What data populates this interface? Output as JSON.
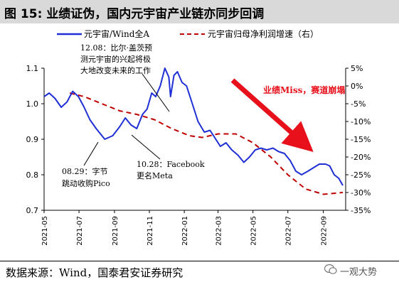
{
  "header": {
    "title": "图 15: 业绩证伪，国内元宇宙产业链亦同步回调"
  },
  "source": {
    "text": "数据来源：Wind，国泰君安证券研究",
    "watermark": "一观大势"
  },
  "colors": {
    "title_bg": "#d9d9d9",
    "series_index": "#1f2fd6",
    "series_growth": "#c00000",
    "arrow": "#e8101b"
  },
  "chart_data": {
    "type": "line",
    "title": "",
    "x_tick_labels": [
      "2021-05",
      "2021-07",
      "2021-09",
      "2021-11",
      "2022-01",
      "2022-03",
      "2022-05",
      "2022-07",
      "2022-09"
    ],
    "x_range": [
      "2021-05-01",
      "2022-10-10"
    ],
    "ylim_left": [
      0.7,
      1.1
    ],
    "yticks_left": [
      "0.7",
      "0.8",
      "0.9",
      "1.0",
      "1.1"
    ],
    "yticks_left_values": [
      0.7,
      0.8,
      0.9,
      1.0,
      1.1
    ],
    "ylim_right": [
      -35,
      5
    ],
    "yticks_right": [
      "5%",
      "0%",
      "-5%",
      "-10%",
      "-15%",
      "-20%",
      "-25%",
      "-30%",
      "-35%"
    ],
    "yticks_right_values": [
      5,
      0,
      -5,
      -10,
      -15,
      -20,
      -25,
      -30,
      -35
    ],
    "grid": false,
    "legend_position": "top",
    "series": [
      {
        "name": "元宇宙/Wind全A",
        "axis": "left",
        "style": "solid",
        "points": [
          [
            "2021-05-01",
            1.02
          ],
          [
            "2021-05-10",
            1.03
          ],
          [
            "2021-05-20",
            1.015
          ],
          [
            "2021-05-31",
            0.99
          ],
          [
            "2021-06-10",
            1.005
          ],
          [
            "2021-06-20",
            1.035
          ],
          [
            "2021-06-30",
            1.02
          ],
          [
            "2021-07-10",
            0.99
          ],
          [
            "2021-07-20",
            0.955
          ],
          [
            "2021-07-31",
            0.93
          ],
          [
            "2021-08-15",
            0.9
          ],
          [
            "2021-08-29",
            0.91
          ],
          [
            "2021-09-10",
            0.935
          ],
          [
            "2021-09-20",
            0.96
          ],
          [
            "2021-09-30",
            0.94
          ],
          [
            "2021-10-10",
            0.93
          ],
          [
            "2021-10-20",
            0.97
          ],
          [
            "2021-10-28",
            0.985
          ],
          [
            "2021-11-05",
            1.03
          ],
          [
            "2021-11-12",
            1.02
          ],
          [
            "2021-11-20",
            1.05
          ],
          [
            "2021-11-28",
            1.1
          ],
          [
            "2021-12-05",
            1.075
          ],
          [
            "2021-12-08",
            1.02
          ],
          [
            "2021-12-14",
            1.08
          ],
          [
            "2021-12-20",
            1.09
          ],
          [
            "2021-12-28",
            1.06
          ],
          [
            "2022-01-05",
            1.05
          ],
          [
            "2022-01-15",
            1.0
          ],
          [
            "2022-01-25",
            0.95
          ],
          [
            "2022-02-05",
            0.92
          ],
          [
            "2022-02-15",
            0.925
          ],
          [
            "2022-02-25",
            0.9
          ],
          [
            "2022-03-05",
            0.88
          ],
          [
            "2022-03-15",
            0.89
          ],
          [
            "2022-03-25",
            0.87
          ],
          [
            "2022-04-05",
            0.855
          ],
          [
            "2022-04-15",
            0.835
          ],
          [
            "2022-04-25",
            0.85
          ],
          [
            "2022-05-05",
            0.87
          ],
          [
            "2022-05-15",
            0.875
          ],
          [
            "2022-05-25",
            0.87
          ],
          [
            "2022-06-05",
            0.875
          ],
          [
            "2022-06-15",
            0.865
          ],
          [
            "2022-06-25",
            0.86
          ],
          [
            "2022-07-05",
            0.84
          ],
          [
            "2022-07-15",
            0.81
          ],
          [
            "2022-07-25",
            0.8
          ],
          [
            "2022-08-05",
            0.81
          ],
          [
            "2022-08-15",
            0.82
          ],
          [
            "2022-08-25",
            0.83
          ],
          [
            "2022-09-05",
            0.83
          ],
          [
            "2022-09-12",
            0.825
          ],
          [
            "2022-09-20",
            0.8
          ],
          [
            "2022-09-28",
            0.79
          ],
          [
            "2022-10-05",
            0.77
          ]
        ]
      },
      {
        "name": "元宇宙归母净利润增速（右）",
        "axis": "right",
        "style": "dashed",
        "points": [
          [
            "2021-06-15",
            -2
          ],
          [
            "2021-07-10",
            -3
          ],
          [
            "2021-08-10",
            -5
          ],
          [
            "2021-09-10",
            -7
          ],
          [
            "2021-10-10",
            -8
          ],
          [
            "2021-11-10",
            -9.5
          ],
          [
            "2021-12-10",
            -12
          ],
          [
            "2022-01-10",
            -14
          ],
          [
            "2022-02-01",
            -14.5
          ],
          [
            "2022-03-01",
            -13.5
          ],
          [
            "2022-04-01",
            -13.5
          ],
          [
            "2022-05-01",
            -16
          ],
          [
            "2022-06-01",
            -20
          ],
          [
            "2022-07-01",
            -25
          ],
          [
            "2022-08-01",
            -29
          ],
          [
            "2022-09-01",
            -30.5
          ],
          [
            "2022-10-05",
            -30
          ]
        ]
      }
    ],
    "annotations": [
      {
        "id": "ann-1208",
        "lines": [
          "12.08：比尔·盖茨预",
          "测元宇宙的兴起将极",
          "大地改变未来的工作"
        ]
      },
      {
        "id": "ann-1028",
        "lines": [
          "10.28：Facebook",
          "更名Meta"
        ]
      },
      {
        "id": "ann-0829",
        "lines": [
          "08.29：字节",
          "跳动收购Pico"
        ]
      },
      {
        "id": "ann-miss",
        "lines": [
          "业绩Miss，赛道崩塌"
        ]
      }
    ]
  }
}
